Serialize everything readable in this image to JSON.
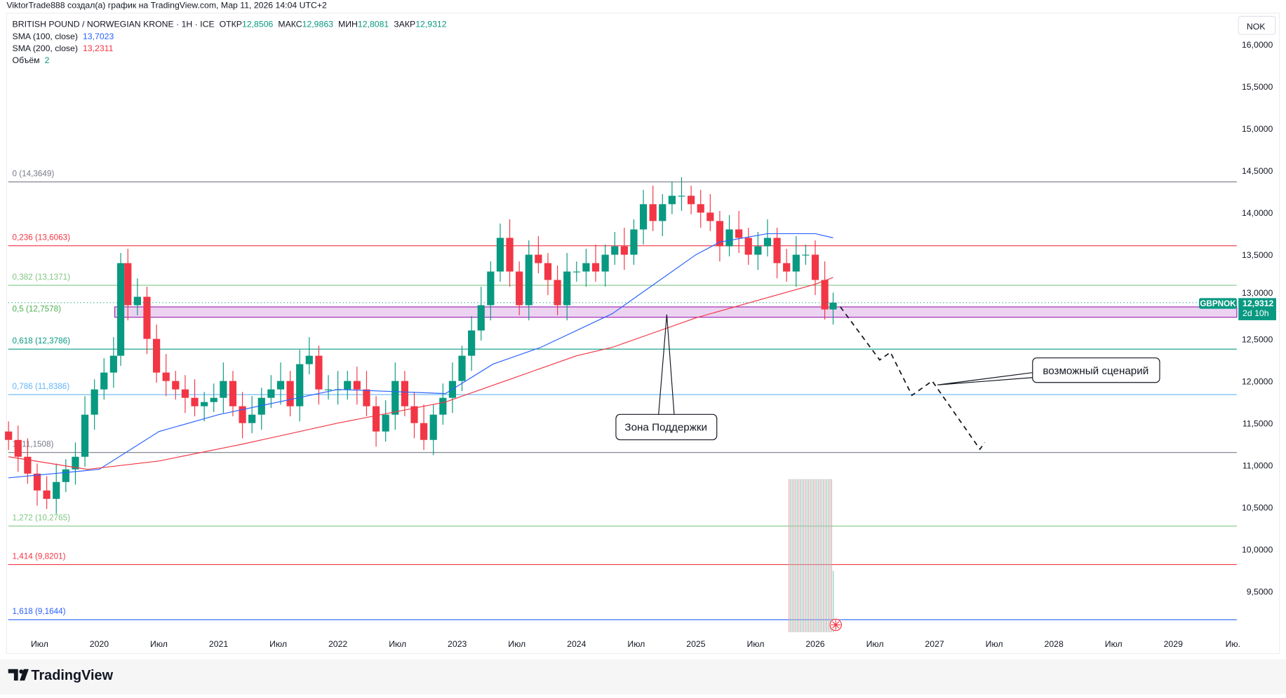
{
  "header": {
    "credit": "ViktorTrade888 создал(а) график на TradingView.com, Мар 11, 2026 14:04 UTC+2",
    "symbol": "BRITISH POUND / NORWEGIAN KRONE · 1H · ICE",
    "ohlc": [
      {
        "label": "ОТКР",
        "value": "12,8506"
      },
      {
        "label": "МАКС",
        "value": "12,9863"
      },
      {
        "label": "МИН",
        "value": "12,8081"
      },
      {
        "label": "ЗАКР",
        "value": "12,9312"
      }
    ],
    "indicators": [
      {
        "label": "SMA (100, close)",
        "value": "13,7023",
        "color": "#2962ff"
      },
      {
        "label": "SMA (200, close)",
        "value": "13,2311",
        "color": "#f23645"
      },
      {
        "label": "Объём",
        "value": "2",
        "color": "#089981"
      }
    ]
  },
  "currency_button": "NOK",
  "last_price": {
    "symbol": "GBPNOK",
    "price": "12,9312",
    "countdown": "2d 10h",
    "value": 12.9312,
    "color": "#089981"
  },
  "logo_text": "TradingView",
  "annotations": {
    "support": "Зона Поддержки",
    "scenario": "возможный сценарий"
  },
  "chart_data": {
    "type": "candlestick",
    "ylim": [
      9.0,
      16.0
    ],
    "xlim": [
      2019.22,
      2029.45
    ],
    "y_ticks": [
      "16,0000",
      "15,5000",
      "15,0000",
      "14,5000",
      "14,0000",
      "13,5000",
      "13,0000",
      "12,5000",
      "12,0000",
      "11,5000",
      "11,0000",
      "10,5000",
      "10,0000",
      "9,5000"
    ],
    "y_tick_values": [
      16,
      15.5,
      15,
      14.5,
      14,
      13.5,
      13,
      12.5,
      12,
      11.5,
      11,
      10.5,
      10,
      9.5
    ],
    "x_ticks": [
      {
        "label": "Июл",
        "t": 2019.5
      },
      {
        "label": "2020",
        "t": 2020
      },
      {
        "label": "Июл",
        "t": 2020.5
      },
      {
        "label": "2021",
        "t": 2021
      },
      {
        "label": "Июл",
        "t": 2021.5
      },
      {
        "label": "2022",
        "t": 2022
      },
      {
        "label": "Июл",
        "t": 2022.5
      },
      {
        "label": "2023",
        "t": 2023
      },
      {
        "label": "Июл",
        "t": 2023.5
      },
      {
        "label": "2024",
        "t": 2024
      },
      {
        "label": "Июл",
        "t": 2024.5
      },
      {
        "label": "2025",
        "t": 2025
      },
      {
        "label": "Июл",
        "t": 2025.5
      },
      {
        "label": "2026",
        "t": 2026
      },
      {
        "label": "Июл",
        "t": 2026.5
      },
      {
        "label": "2027",
        "t": 2027
      },
      {
        "label": "Июл",
        "t": 2027.5
      },
      {
        "label": "2028",
        "t": 2028
      },
      {
        "label": "Июл",
        "t": 2028.5
      },
      {
        "label": "2029",
        "t": 2029
      },
      {
        "label": "Ию.",
        "t": 2029.5
      }
    ],
    "price": [
      [
        2019.24,
        11.3
      ],
      [
        2019.32,
        11.1
      ],
      [
        2019.4,
        10.9
      ],
      [
        2019.48,
        10.7
      ],
      [
        2019.56,
        10.6
      ],
      [
        2019.64,
        10.8
      ],
      [
        2019.72,
        10.95
      ],
      [
        2019.8,
        11.1
      ],
      [
        2019.88,
        11.6
      ],
      [
        2019.96,
        11.9
      ],
      [
        2020.04,
        12.1
      ],
      [
        2020.12,
        12.3
      ],
      [
        2020.18,
        13.4
      ],
      [
        2020.24,
        12.9
      ],
      [
        2020.32,
        13.0
      ],
      [
        2020.4,
        12.5
      ],
      [
        2020.48,
        12.1
      ],
      [
        2020.56,
        12.0
      ],
      [
        2020.64,
        11.9
      ],
      [
        2020.72,
        11.8
      ],
      [
        2020.8,
        11.7
      ],
      [
        2020.88,
        11.75
      ],
      [
        2020.96,
        11.8
      ],
      [
        2021.04,
        12.0
      ],
      [
        2021.12,
        11.7
      ],
      [
        2021.2,
        11.5
      ],
      [
        2021.28,
        11.6
      ],
      [
        2021.36,
        11.8
      ],
      [
        2021.44,
        11.9
      ],
      [
        2021.52,
        12.0
      ],
      [
        2021.6,
        11.7
      ],
      [
        2021.68,
        12.2
      ],
      [
        2021.76,
        12.3
      ],
      [
        2021.84,
        11.9
      ],
      [
        2021.92,
        11.9
      ],
      [
        2022.0,
        11.9
      ],
      [
        2022.08,
        12.0
      ],
      [
        2022.16,
        11.9
      ],
      [
        2022.24,
        11.7
      ],
      [
        2022.32,
        11.4
      ],
      [
        2022.4,
        11.6
      ],
      [
        2022.48,
        12.0
      ],
      [
        2022.56,
        11.7
      ],
      [
        2022.64,
        11.5
      ],
      [
        2022.72,
        11.3
      ],
      [
        2022.8,
        11.6
      ],
      [
        2022.88,
        11.8
      ],
      [
        2022.96,
        12.0
      ],
      [
        2023.04,
        12.3
      ],
      [
        2023.12,
        12.6
      ],
      [
        2023.2,
        12.9
      ],
      [
        2023.28,
        13.3
      ],
      [
        2023.36,
        13.7
      ],
      [
        2023.44,
        13.3
      ],
      [
        2023.52,
        12.9
      ],
      [
        2023.6,
        13.5
      ],
      [
        2023.68,
        13.4
      ],
      [
        2023.76,
        13.2
      ],
      [
        2023.84,
        12.9
      ],
      [
        2023.92,
        13.3
      ],
      [
        2024.0,
        13.3
      ],
      [
        2024.08,
        13.4
      ],
      [
        2024.16,
        13.3
      ],
      [
        2024.24,
        13.5
      ],
      [
        2024.32,
        13.6
      ],
      [
        2024.4,
        13.5
      ],
      [
        2024.48,
        13.8
      ],
      [
        2024.56,
        14.1
      ],
      [
        2024.64,
        13.9
      ],
      [
        2024.72,
        14.1
      ],
      [
        2024.8,
        14.2
      ],
      [
        2024.88,
        14.2
      ],
      [
        2024.96,
        14.1
      ],
      [
        2025.04,
        14.0
      ],
      [
        2025.12,
        13.9
      ],
      [
        2025.2,
        13.6
      ],
      [
        2025.28,
        13.8
      ],
      [
        2025.36,
        13.7
      ],
      [
        2025.44,
        13.5
      ],
      [
        2025.52,
        13.6
      ],
      [
        2025.6,
        13.7
      ],
      [
        2025.68,
        13.4
      ],
      [
        2025.76,
        13.3
      ],
      [
        2025.84,
        13.5
      ],
      [
        2025.92,
        13.5
      ],
      [
        2026.0,
        13.2
      ],
      [
        2026.08,
        12.85
      ],
      [
        2026.15,
        12.93
      ]
    ],
    "sma100": {
      "name": "SMA (100, close)",
      "color": "#2962ff",
      "points": [
        [
          2019.24,
          10.85
        ],
        [
          2020.0,
          10.95
        ],
        [
          2020.5,
          11.4
        ],
        [
          2021.0,
          11.6
        ],
        [
          2022.0,
          11.9
        ],
        [
          2022.9,
          11.85
        ],
        [
          2023.3,
          12.2
        ],
        [
          2023.7,
          12.4
        ],
        [
          2024.3,
          12.8
        ],
        [
          2024.6,
          13.1
        ],
        [
          2025.0,
          13.5
        ],
        [
          2025.2,
          13.65
        ],
        [
          2025.6,
          13.75
        ],
        [
          2026.0,
          13.75
        ],
        [
          2026.15,
          13.7
        ]
      ]
    },
    "sma200": {
      "name": "SMA (200, close)",
      "color": "#f23645",
      "points": [
        [
          2019.24,
          11.1
        ],
        [
          2019.9,
          10.95
        ],
        [
          2020.5,
          11.05
        ],
        [
          2021.2,
          11.25
        ],
        [
          2022.0,
          11.5
        ],
        [
          2022.9,
          11.75
        ],
        [
          2023.5,
          12.05
        ],
        [
          2024.0,
          12.3
        ],
        [
          2024.3,
          12.4
        ],
        [
          2024.6,
          12.55
        ],
        [
          2025.0,
          12.75
        ],
        [
          2025.5,
          12.95
        ],
        [
          2026.0,
          13.15
        ],
        [
          2026.15,
          13.23
        ]
      ]
    },
    "fib_levels": [
      {
        "label": "0 (14,3649)",
        "price": 14.3649,
        "color": "#787b86"
      },
      {
        "label": "0,236 (13,6063)",
        "price": 13.6063,
        "color": "#f23645"
      },
      {
        "label": "0,382 (13,1371)",
        "price": 13.1371,
        "color": "#81c784"
      },
      {
        "label": "0,5 (12,7578)",
        "price": 12.7578,
        "color": "#4caf50"
      },
      {
        "label": "0,618 (12,3786)",
        "price": 12.3786,
        "color": "#089981"
      },
      {
        "label": "0,786 (11,8386)",
        "price": 11.8386,
        "color": "#64b5f6"
      },
      {
        "label": "1 (11,1508)",
        "price": 11.1508,
        "color": "#787b86"
      },
      {
        "label": "1,272 (10,2765)",
        "price": 10.2765,
        "color": "#81c784"
      },
      {
        "label": "1,414 (9,8201)",
        "price": 9.8201,
        "color": "#f23645"
      },
      {
        "label": "1,618 (9,1644)",
        "price": 9.1644,
        "color": "#2962ff"
      }
    ],
    "support_zone": {
      "from": 12.757,
      "to": 12.88,
      "start_t": 2020.13,
      "color": "#9c27b0"
    },
    "scenario_path": [
      [
        2026.21,
        12.88
      ],
      [
        2026.54,
        12.25
      ],
      [
        2026.63,
        12.34
      ],
      [
        2026.81,
        11.83
      ],
      [
        2026.98,
        12.0
      ],
      [
        2027.38,
        11.19
      ],
      [
        2027.42,
        11.27
      ]
    ]
  }
}
